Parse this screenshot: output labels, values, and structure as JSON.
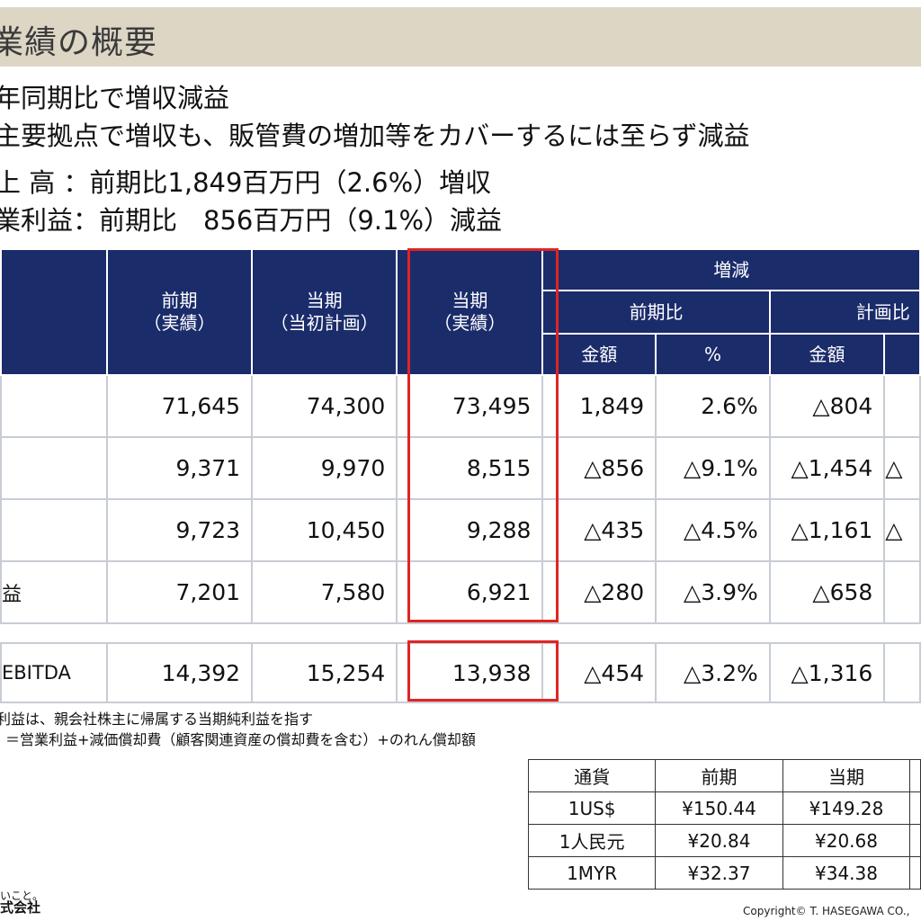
{
  "title": "業績の概要",
  "bullets": [
    "年同期比で増収減益",
    "主要拠点で増収も、販管費の増加等をカバーするには至らず減益",
    "上 高 ：前期比1,849百万円（2.6%）増収",
    "業利益：前期比　856百万円（9.1%）減益"
  ],
  "table": {
    "headers": {
      "prev": "前期\n（実績）",
      "plan": "当期\n（当初計画）",
      "actual": "当期\n（実績）",
      "change": "増減",
      "vs_prev": "前期比",
      "vs_plan": "計画比",
      "amount": "金額",
      "pct": "%",
      "amount2": "金額"
    },
    "rows": [
      {
        "label": "",
        "prev": "71,645",
        "plan": "74,300",
        "actual": "73,495",
        "diff": "1,849",
        "pct": "2.6%",
        "plan_diff": "△804",
        "tail": ""
      },
      {
        "label": "",
        "prev": "9,371",
        "plan": "9,970",
        "actual": "8,515",
        "diff": "△856",
        "pct": "△9.1%",
        "plan_diff": "△1,454",
        "tail": "△"
      },
      {
        "label": "",
        "prev": "9,723",
        "plan": "10,450",
        "actual": "9,288",
        "diff": "△435",
        "pct": "△4.5%",
        "plan_diff": "△1,161",
        "tail": "△"
      },
      {
        "label": "益",
        "prev": "7,201",
        "plan": "7,580",
        "actual": "6,921",
        "diff": "△280",
        "pct": "△3.9%",
        "plan_diff": "△658",
        "tail": ""
      }
    ],
    "ebitda": {
      "label": "EBITDA",
      "prev": "14,392",
      "plan": "15,254",
      "actual": "13,938",
      "diff": "△454",
      "pct": "△3.2%",
      "plan_diff": "△1,316",
      "tail": ""
    }
  },
  "notes": [
    "利益は、親会社株主に帰属する当期純利益を指す",
    "＝営業利益+減価償却費（顧客関連資産の償却費を含む）+のれん償却額"
  ],
  "fx": {
    "headers": [
      "通貨",
      "前期",
      "当期"
    ],
    "rows": [
      [
        "1US$",
        "¥150.44",
        "¥149.28"
      ],
      [
        "1人民元",
        "¥20.84",
        "¥20.68"
      ],
      [
        "1MYR",
        "¥32.37",
        "¥34.38"
      ]
    ]
  },
  "logo": {
    "line1": "いこと。",
    "line2": "式会社"
  },
  "copyright": "Copyright© T. HASEGAWA CO.,"
}
